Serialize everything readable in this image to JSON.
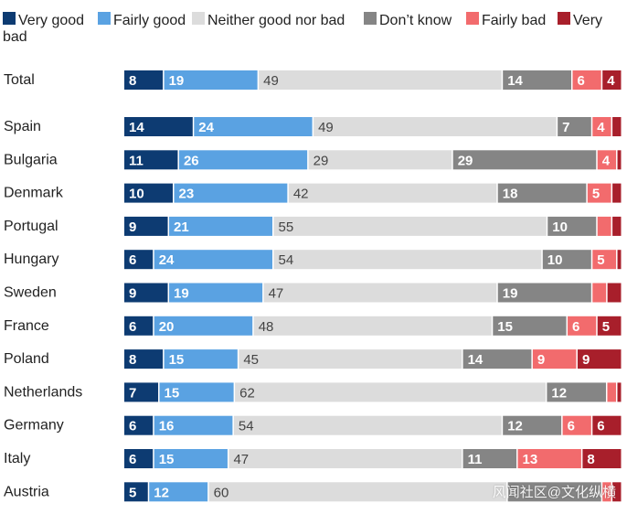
{
  "chart_data": {
    "type": "bar",
    "orientation": "horizontal",
    "stacked": true,
    "legend_placement": "top",
    "series": [
      {
        "name": "Very good",
        "color": "#0d3b72",
        "label_color": "#ffffff",
        "values": [
          8,
          14,
          11,
          10,
          9,
          6,
          9,
          6,
          8,
          7,
          6,
          6,
          5
        ]
      },
      {
        "name": "Fairly good",
        "color": "#5aa2e2",
        "label_color": "#ffffff",
        "values": [
          19,
          24,
          26,
          23,
          21,
          24,
          19,
          20,
          15,
          15,
          16,
          15,
          12
        ]
      },
      {
        "name": "Neither good nor bad",
        "color": "#dcdcdc",
        "label_color": "#444444",
        "values": [
          49,
          49,
          29,
          42,
          55,
          54,
          47,
          48,
          45,
          62,
          54,
          47,
          60
        ]
      },
      {
        "name": "Don't know",
        "color": "#858585",
        "label_color": "#ffffff",
        "values": [
          14,
          7,
          29,
          18,
          10,
          10,
          19,
          15,
          14,
          12,
          12,
          11,
          19
        ]
      },
      {
        "name": "Fairly bad",
        "color": "#f26b6d",
        "label_color": "#ffffff",
        "values": [
          6,
          4,
          4,
          5,
          3,
          5,
          3,
          6,
          9,
          2,
          6,
          13,
          2
        ]
      },
      {
        "name": "Very bad",
        "color": "#a81f2b",
        "label_color": "#ffffff",
        "values": [
          4,
          2,
          1,
          2,
          2,
          1,
          3,
          5,
          9,
          1,
          6,
          8,
          2
        ]
      }
    ],
    "categories": [
      "Total",
      "Spain",
      "Bulgaria",
      "Denmark",
      "Portugal",
      "Hungary",
      "Sweden",
      "France",
      "Poland",
      "Netherlands",
      "Germany",
      "Italy",
      "Austria"
    ],
    "data_labels": [
      [
        "8",
        "19",
        "49",
        "14",
        "6",
        "4"
      ],
      [
        "14",
        "24",
        "49",
        "7",
        "4",
        ""
      ],
      [
        "11",
        "26",
        "29",
        "29",
        "4",
        ""
      ],
      [
        "10",
        "23",
        "42",
        "18",
        "5",
        ""
      ],
      [
        "9",
        "21",
        "55",
        "10",
        "",
        ""
      ],
      [
        "6",
        "24",
        "54",
        "10",
        "5",
        ""
      ],
      [
        "9",
        "19",
        "47",
        "19",
        "",
        ""
      ],
      [
        "6",
        "20",
        "48",
        "15",
        "6",
        "5"
      ],
      [
        "8",
        "15",
        "45",
        "14",
        "9",
        "9"
      ],
      [
        "7",
        "15",
        "62",
        "12",
        "",
        ""
      ],
      [
        "6",
        "16",
        "54",
        "12",
        "6",
        "6"
      ],
      [
        "6",
        "15",
        "47",
        "11",
        "13",
        "8"
      ],
      [
        "5",
        "12",
        "60",
        "",
        "",
        ""
      ]
    ],
    "xlim": [
      0,
      100
    ]
  },
  "legend": {
    "items": [
      "Very good",
      "Fairly good",
      "Neither good nor bad",
      "Don’t know",
      "Fairly bad",
      "Very"
    ],
    "wrap_text": "bad"
  },
  "watermark": "风闻社区@文化纵横"
}
